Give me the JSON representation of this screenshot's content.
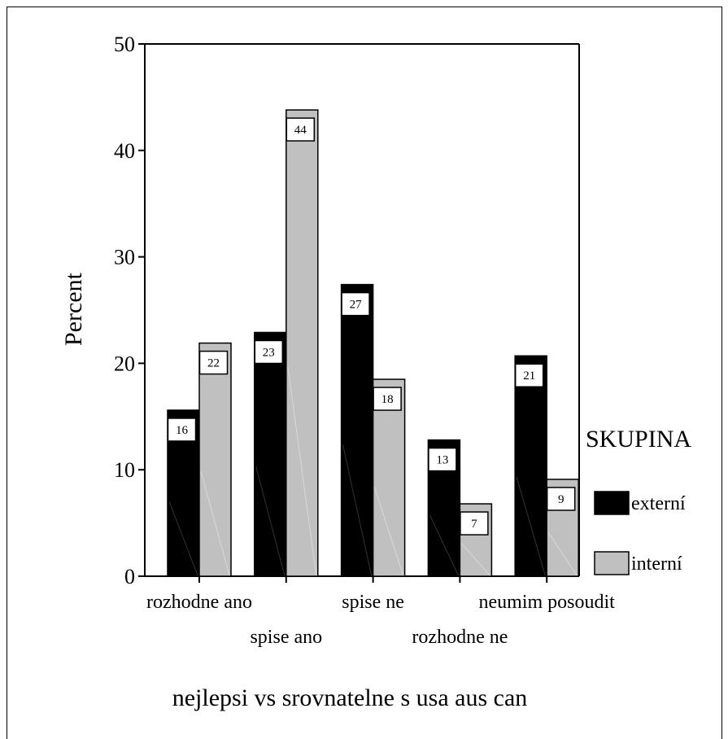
{
  "chart_data": {
    "type": "bar",
    "title": "",
    "xlabel": "nejlepsi vs srovnatelne s usa aus can",
    "ylabel": "Percent",
    "ylim": [
      0,
      50
    ],
    "yticks": [
      0,
      10,
      20,
      30,
      40,
      50
    ],
    "categories": [
      "rozhodne ano",
      "spise ano",
      "spise ne",
      "rozhodne ne",
      "neumim posoudit"
    ],
    "series": [
      {
        "name": "externí",
        "color": "#000000",
        "values": [
          15.6,
          22.9,
          27.4,
          12.8,
          20.7
        ],
        "labels": [
          "16",
          "23",
          "27",
          "13",
          "21"
        ]
      },
      {
        "name": "interní",
        "color": "#c0c0c0",
        "values": [
          21.9,
          43.8,
          18.5,
          6.8,
          9.1
        ],
        "labels": [
          "22",
          "44",
          "18",
          "7",
          "9"
        ]
      }
    ],
    "legend": {
      "title": "SKUPINA",
      "placement": "right"
    },
    "grid": false
  }
}
